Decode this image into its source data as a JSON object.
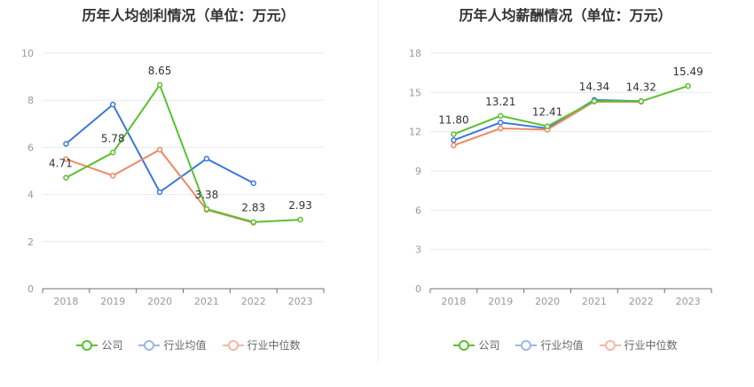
{
  "chart_data": [
    {
      "type": "line",
      "title": "历年人均创利情况（单位：万元）",
      "categories": [
        "2018",
        "2019",
        "2020",
        "2021",
        "2022",
        "2023"
      ],
      "ylim": [
        0,
        10
      ],
      "yticks": [
        0,
        2,
        4,
        6,
        8,
        10
      ],
      "grid": true,
      "legend_position": "bottom",
      "series": [
        {
          "name": "公司",
          "color": "#5ac031",
          "values": [
            4.71,
            5.78,
            8.65,
            3.38,
            2.83,
            2.93
          ],
          "labels": [
            "4.71",
            "5.78",
            "8.65",
            "3.38",
            "2.83",
            "2.93"
          ]
        },
        {
          "name": "行业均值",
          "color": "#3b78d8",
          "values": [
            6.15,
            7.82,
            4.1,
            5.52,
            4.48,
            null
          ]
        },
        {
          "name": "行业中位数",
          "color": "#ee8866",
          "values": [
            5.5,
            4.8,
            5.9,
            3.35,
            2.8,
            null
          ]
        }
      ]
    },
    {
      "type": "line",
      "title": "历年人均薪酬情况（单位：万元）",
      "categories": [
        "2018",
        "2019",
        "2020",
        "2021",
        "2022",
        "2023"
      ],
      "ylim": [
        0,
        18
      ],
      "yticks": [
        0,
        3,
        6,
        9,
        12,
        15,
        18
      ],
      "grid": true,
      "legend_position": "bottom",
      "series": [
        {
          "name": "公司",
          "color": "#5ac031",
          "values": [
            11.8,
            13.21,
            12.41,
            14.34,
            14.32,
            15.49
          ],
          "labels": [
            "11.80",
            "13.21",
            "12.41",
            "14.34",
            "14.32",
            "15.49"
          ]
        },
        {
          "name": "行业均值",
          "color": "#3b78d8",
          "values": [
            11.35,
            12.7,
            12.25,
            14.42,
            14.33,
            null
          ]
        },
        {
          "name": "行业中位数",
          "color": "#ee8866",
          "values": [
            10.95,
            12.25,
            12.15,
            14.3,
            14.28,
            null
          ]
        }
      ]
    }
  ]
}
